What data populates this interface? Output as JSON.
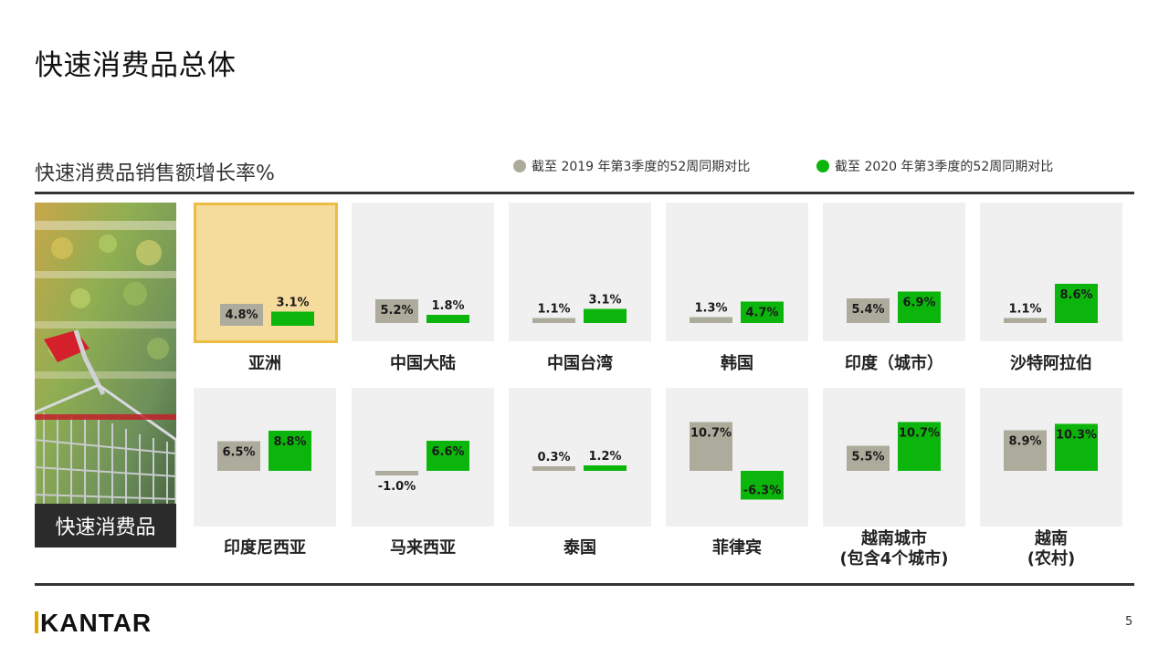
{
  "page": {
    "title": "快速消费品总体",
    "subtitle": "快速消费品销售额增长率%",
    "photo_caption": "快速消费品",
    "brand": "KANTAR",
    "page_number": "5"
  },
  "legend": {
    "items": [
      {
        "label": "截至 2019 年第3季度的52周同期对比",
        "color": "#adab9c"
      },
      {
        "label": "截至 2020 年第3季度的52周同期对比",
        "color": "#0cb50c"
      }
    ]
  },
  "colors": {
    "series_2019": "#adab9c",
    "series_2020": "#0cb50c",
    "panel_bg": "#f0f0f0",
    "highlight_bg": "#f6dc9c",
    "highlight_border": "#ebbd43"
  },
  "chart_data": {
    "type": "bar",
    "series": [
      {
        "name": "截至 2019 年第3季度的52周同期对比"
      },
      {
        "name": "截至 2020 年第3季度的52周同期对比"
      }
    ],
    "panels": [
      {
        "label": "亚洲",
        "v2019": 4.8,
        "v2020": 3.1,
        "t2019": "4.8%",
        "t2020": "3.1%",
        "highlight": true
      },
      {
        "label": "中国大陆",
        "v2019": 5.2,
        "v2020": 1.8,
        "t2019": "5.2%",
        "t2020": "1.8%"
      },
      {
        "label": "中国台湾",
        "v2019": 1.1,
        "v2020": 3.1,
        "t2019": "1.1%",
        "t2020": "3.1%"
      },
      {
        "label": "韩国",
        "v2019": 1.3,
        "v2020": 4.7,
        "t2019": "1.3%",
        "t2020": "4.7%"
      },
      {
        "label": "印度（城市）",
        "v2019": 5.4,
        "v2020": 6.9,
        "t2019": "5.4%",
        "t2020": "6.9%"
      },
      {
        "label": "沙特阿拉伯",
        "v2019": 1.1,
        "v2020": 8.6,
        "t2019": "1.1%",
        "t2020": "8.6%"
      },
      {
        "label": "印度尼西亚",
        "v2019": 6.5,
        "v2020": 8.8,
        "t2019": "6.5%",
        "t2020": "8.8%"
      },
      {
        "label": "马来西亚",
        "v2019": -1.0,
        "v2020": 6.6,
        "t2019": "-1.0%",
        "t2020": "6.6%"
      },
      {
        "label": "泰国",
        "v2019": 0.3,
        "v2020": 1.2,
        "t2019": "0.3%",
        "t2020": "1.2%"
      },
      {
        "label": "菲律宾",
        "v2019": 10.7,
        "v2020": -6.3,
        "t2019": "10.7%",
        "t2020": "-6.3%"
      },
      {
        "label": "越南城市\n(包含4个城市)",
        "v2019": 5.5,
        "v2020": 10.7,
        "t2019": "5.5%",
        "t2020": "10.7%"
      },
      {
        "label": "越南\n(农村)",
        "v2019": 8.9,
        "v2020": 10.3,
        "t2019": "8.9%",
        "t2020": "10.3%"
      }
    ]
  }
}
